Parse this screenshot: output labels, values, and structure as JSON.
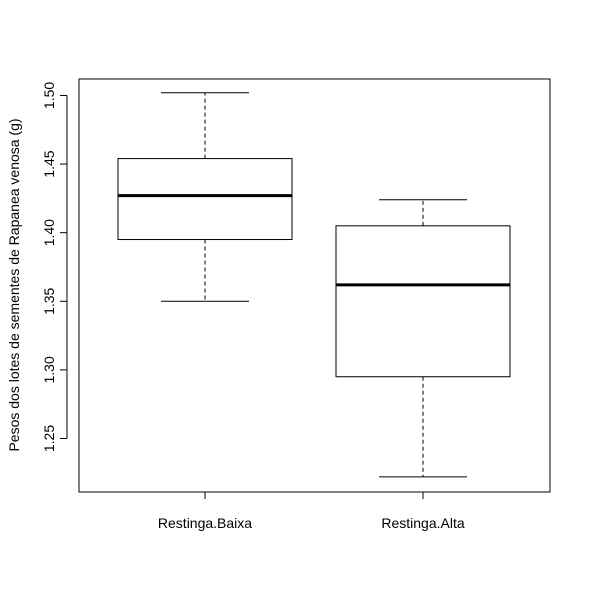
{
  "chart_data": {
    "type": "boxplot",
    "title": "",
    "xlabel": "",
    "ylabel": "Pesos dos lotes de sementes de Rapanea venosa (g)",
    "ylim": [
      1.211,
      1.512
    ],
    "yticks": [
      "1.25",
      "1.30",
      "1.35",
      "1.40",
      "1.45",
      "1.50"
    ],
    "grid": false,
    "categories": [
      "Restinga.Baixa",
      "Restinga.Alta"
    ],
    "boxes": [
      {
        "name": "Restinga.Baixa",
        "min": 1.35,
        "q1": 1.395,
        "median": 1.427,
        "q3": 1.454,
        "max": 1.502
      },
      {
        "name": "Restinga.Alta",
        "min": 1.222,
        "q1": 1.295,
        "median": 1.362,
        "q3": 1.405,
        "max": 1.424
      }
    ]
  }
}
